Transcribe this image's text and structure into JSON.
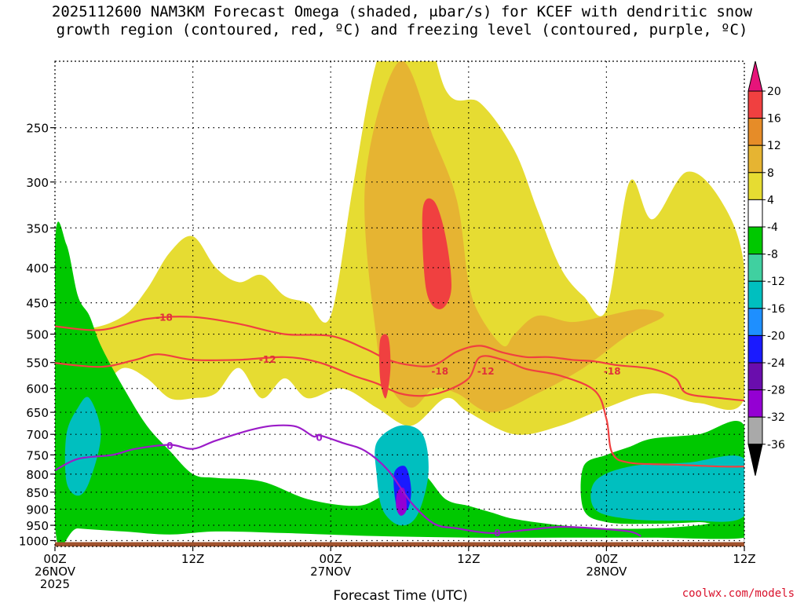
{
  "chart_data": {
    "type": "heatmap",
    "title_line1": "2025112600 NAM3KM Forecast Omega (shaded, μbar/s) for KCEF with dendritic snow",
    "title_line2": "growth region (contoured, red, ºC) and freezing level (contoured, purple, ºC)",
    "xlabel": "Forecast Time (UTC)",
    "ylabel": "",
    "credit": "coolwx.com/models",
    "x_unit": "forecast hour",
    "xlim": [
      0,
      60
    ],
    "ylim_hPa": [
      1020,
      200
    ],
    "y_ticks": [
      250,
      300,
      350,
      400,
      450,
      500,
      550,
      600,
      650,
      700,
      750,
      800,
      850,
      900,
      950,
      1000
    ],
    "y_tick_labels": [
      "250",
      "300",
      "350",
      "400",
      "450",
      "500",
      "550",
      "600",
      "650",
      "700",
      "750",
      "800",
      "850",
      "900",
      "950",
      "1000"
    ],
    "x_ticks": [
      0,
      12,
      24,
      36,
      48,
      60
    ],
    "x_tick_labels": [
      {
        "lines": [
          "00Z",
          "26NOV",
          "2025"
        ]
      },
      {
        "lines": [
          "12Z"
        ]
      },
      {
        "lines": [
          "00Z",
          "27NOV"
        ]
      },
      {
        "lines": [
          "12Z"
        ]
      },
      {
        "lines": [
          "00Z",
          "28NOV"
        ]
      },
      {
        "lines": [
          "12Z"
        ]
      }
    ],
    "colorbar": {
      "levels": [
        -36,
        -32,
        -28,
        -24,
        -20,
        -16,
        -12,
        -8,
        -4,
        4,
        8,
        12,
        16,
        20
      ],
      "labels": [
        "20",
        "16",
        "12",
        "8",
        "4",
        "-4",
        "-8",
        "-12",
        "-16",
        "-20",
        "-24",
        "-28",
        "-32",
        "-36"
      ],
      "colors": [
        "#000000",
        "#a9a9a9",
        "#9400d3",
        "#6a0dad",
        "#1a1aff",
        "#1e8fff",
        "#00bfbf",
        "#40d0a0",
        "#00c800",
        "#ffffff",
        "#e6dc32",
        "#e6b432",
        "#e68c28",
        "#f04040",
        "#e6147a"
      ]
    },
    "omega_regions": [
      {
        "name": "rising-upper-yellow",
        "value": 6,
        "poly": [
          [
            0,
            480
          ],
          [
            3,
            490
          ],
          [
            6,
            470
          ],
          [
            8,
            430
          ],
          [
            10,
            380
          ],
          [
            12,
            360
          ],
          [
            14,
            400
          ],
          [
            16,
            420
          ],
          [
            18,
            410
          ],
          [
            20,
            440
          ],
          [
            22,
            450
          ],
          [
            24,
            470
          ],
          [
            26,
            300
          ],
          [
            28,
            200
          ],
          [
            31,
            150
          ],
          [
            34,
            220
          ],
          [
            37,
            230
          ],
          [
            40,
            270
          ],
          [
            42,
            330
          ],
          [
            44,
            400
          ],
          [
            46,
            440
          ],
          [
            48,
            460
          ],
          [
            50,
            300
          ],
          [
            52,
            340
          ],
          [
            55,
            290
          ],
          [
            58,
            320
          ],
          [
            60,
            400
          ],
          [
            60,
            620
          ],
          [
            56,
            630
          ],
          [
            52,
            610
          ],
          [
            48,
            640
          ],
          [
            44,
            680
          ],
          [
            40,
            700
          ],
          [
            36,
            650
          ],
          [
            34,
            620
          ],
          [
            31,
            680
          ],
          [
            28,
            640
          ],
          [
            25,
            600
          ],
          [
            22,
            620
          ],
          [
            20,
            580
          ],
          [
            18,
            620
          ],
          [
            16,
            560
          ],
          [
            14,
            610
          ],
          [
            12,
            620
          ],
          [
            10,
            620
          ],
          [
            8,
            580
          ],
          [
            6,
            560
          ],
          [
            4,
            590
          ],
          [
            2,
            560
          ],
          [
            0,
            520
          ]
        ]
      },
      {
        "name": "rising-orange-core",
        "value": 11,
        "poly": [
          [
            27,
            300
          ],
          [
            30,
            200
          ],
          [
            33,
            260
          ],
          [
            35,
            320
          ],
          [
            36,
            420
          ],
          [
            37,
            470
          ],
          [
            39,
            520
          ],
          [
            40,
            500
          ],
          [
            42,
            470
          ],
          [
            45,
            480
          ],
          [
            48,
            470
          ],
          [
            51,
            460
          ],
          [
            53,
            470
          ],
          [
            50,
            500
          ],
          [
            46,
            560
          ],
          [
            42,
            610
          ],
          [
            38,
            650
          ],
          [
            35,
            610
          ],
          [
            33,
            600
          ],
          [
            31,
            640
          ],
          [
            29,
            590
          ],
          [
            28,
            510
          ]
        ]
      },
      {
        "name": "rising-red-core",
        "value": 17,
        "poly": [
          [
            32,
            330
          ],
          [
            33,
            320
          ],
          [
            34,
            360
          ],
          [
            34.5,
            430
          ],
          [
            33.5,
            460
          ],
          [
            32.3,
            430
          ]
        ]
      },
      {
        "name": "rising-red-narrow",
        "value": 17,
        "poly": [
          [
            28.3,
            510
          ],
          [
            29,
            505
          ],
          [
            29.2,
            560
          ],
          [
            28.8,
            620
          ],
          [
            28.3,
            580
          ]
        ]
      },
      {
        "name": "sinking-green-left",
        "value": -6,
        "poly": [
          [
            0,
            370
          ],
          [
            1,
            370
          ],
          [
            2,
            440
          ],
          [
            3,
            470
          ],
          [
            4,
            520
          ],
          [
            6,
            600
          ],
          [
            8,
            680
          ],
          [
            10,
            740
          ],
          [
            12,
            800
          ],
          [
            14,
            810
          ],
          [
            18,
            820
          ],
          [
            22,
            870
          ],
          [
            26,
            890
          ],
          [
            28,
            870
          ],
          [
            30,
            820
          ],
          [
            32,
            800
          ],
          [
            34,
            870
          ],
          [
            36,
            890
          ],
          [
            38,
            910
          ],
          [
            40,
            930
          ],
          [
            44,
            950
          ],
          [
            48,
            960
          ],
          [
            52,
            960
          ],
          [
            56,
            950
          ],
          [
            60,
            930
          ],
          [
            60,
            990
          ],
          [
            52,
            990
          ],
          [
            44,
            990
          ],
          [
            36,
            990
          ],
          [
            28,
            985
          ],
          [
            20,
            975
          ],
          [
            14,
            970
          ],
          [
            10,
            980
          ],
          [
            6,
            970
          ],
          [
            2,
            960
          ],
          [
            0,
            950
          ]
        ]
      },
      {
        "name": "sinking-green-right",
        "value": -6,
        "poly": [
          [
            46,
            780
          ],
          [
            48,
            750
          ],
          [
            50,
            730
          ],
          [
            52,
            710
          ],
          [
            56,
            700
          ],
          [
            60,
            680
          ],
          [
            60,
            930
          ],
          [
            56,
            940
          ],
          [
            52,
            945
          ],
          [
            48,
            940
          ],
          [
            46,
            900
          ]
        ]
      },
      {
        "name": "sinking-cyan-left",
        "value": -14,
        "poly": [
          [
            1,
            700
          ],
          [
            2,
            640
          ],
          [
            3,
            620
          ],
          [
            4,
            700
          ],
          [
            3,
            820
          ],
          [
            2,
            860
          ],
          [
            1,
            820
          ]
        ]
      },
      {
        "name": "sinking-cyan-mid",
        "value": -14,
        "poly": [
          [
            28,
            720
          ],
          [
            30,
            680
          ],
          [
            32,
            700
          ],
          [
            32.5,
            800
          ],
          [
            31.5,
            920
          ],
          [
            30,
            950
          ],
          [
            28.5,
            900
          ],
          [
            28,
            800
          ]
        ]
      },
      {
        "name": "sinking-cyan-right",
        "value": -14,
        "poly": [
          [
            47,
            820
          ],
          [
            50,
            780
          ],
          [
            55,
            770
          ],
          [
            60,
            760
          ],
          [
            60,
            920
          ],
          [
            55,
            935
          ],
          [
            50,
            930
          ],
          [
            47,
            900
          ]
        ]
      },
      {
        "name": "sinking-blue-core",
        "value": -22,
        "poly": [
          [
            29.5,
            800
          ],
          [
            30.5,
            780
          ],
          [
            31,
            840
          ],
          [
            30.7,
            900
          ],
          [
            29.8,
            900
          ]
        ]
      },
      {
        "name": "sinking-purple-core",
        "value": -30,
        "poly": [
          [
            29.8,
            850
          ],
          [
            30.4,
            840
          ],
          [
            30.6,
            900
          ],
          [
            30.1,
            920
          ],
          [
            29.7,
            895
          ]
        ]
      }
    ],
    "dgz_contours": [
      {
        "label": "-18",
        "label_at": [
          9.5,
          472
        ],
        "points": [
          [
            0,
            487
          ],
          [
            4,
            493
          ],
          [
            8,
            475
          ],
          [
            12,
            472
          ],
          [
            16,
            483
          ],
          [
            20,
            500
          ],
          [
            24,
            503
          ],
          [
            27,
            525
          ],
          [
            29,
            545
          ],
          [
            31,
            555
          ],
          [
            33,
            555
          ],
          [
            35,
            530
          ],
          [
            37,
            520
          ],
          [
            39,
            532
          ],
          [
            41,
            540
          ],
          [
            43,
            540
          ],
          [
            45,
            545
          ],
          [
            47,
            548
          ],
          [
            49,
            555
          ],
          [
            52,
            562
          ],
          [
            54,
            580
          ],
          [
            55,
            610
          ],
          [
            58,
            620
          ],
          [
            60,
            625
          ]
        ]
      },
      {
        "label": "-12",
        "label_at": [
          18.5,
          543
        ],
        "points": [
          [
            0,
            551
          ],
          [
            4,
            558
          ],
          [
            7,
            545
          ],
          [
            9,
            535
          ],
          [
            12,
            545
          ],
          [
            16,
            545
          ],
          [
            20,
            540
          ],
          [
            23,
            550
          ],
          [
            26,
            575
          ],
          [
            28,
            590
          ],
          [
            30,
            610
          ],
          [
            32,
            615
          ],
          [
            34,
            605
          ],
          [
            36,
            580
          ],
          [
            37,
            540
          ],
          [
            39,
            545
          ],
          [
            41,
            562
          ],
          [
            44,
            575
          ],
          [
            47,
            605
          ],
          [
            48,
            665
          ],
          [
            48.5,
            745
          ],
          [
            50,
            770
          ],
          [
            54,
            775
          ],
          [
            58,
            780
          ],
          [
            60,
            780
          ]
        ]
      },
      {
        "label": "-18",
        "label_at": [
          33.5,
          565
        ],
        "points": []
      },
      {
        "label": "-12",
        "label_at": [
          37.5,
          565
        ],
        "points": []
      },
      {
        "label": "-18",
        "label_at": [
          48.5,
          565
        ],
        "points": []
      }
    ],
    "freezing_level": {
      "label": "0",
      "label_positions": [
        [
          10,
          728
        ],
        [
          23,
          708
        ],
        [
          38.5,
          975
        ]
      ],
      "points": [
        [
          0,
          790
        ],
        [
          2,
          760
        ],
        [
          5,
          750
        ],
        [
          7,
          735
        ],
        [
          10,
          725
        ],
        [
          12,
          735
        ],
        [
          14,
          715
        ],
        [
          17,
          690
        ],
        [
          19,
          680
        ],
        [
          21,
          682
        ],
        [
          22.5,
          705
        ],
        [
          23,
          702
        ],
        [
          25,
          720
        ],
        [
          27,
          740
        ],
        [
          29,
          790
        ],
        [
          31,
          880
        ],
        [
          33,
          945
        ],
        [
          35,
          960
        ],
        [
          38,
          975
        ],
        [
          41,
          965
        ],
        [
          44,
          955
        ],
        [
          47,
          960
        ],
        [
          50,
          970
        ],
        [
          51,
          985
        ]
      ]
    },
    "ground_level_hPa": 1000,
    "ground_color": "#a0522d"
  }
}
